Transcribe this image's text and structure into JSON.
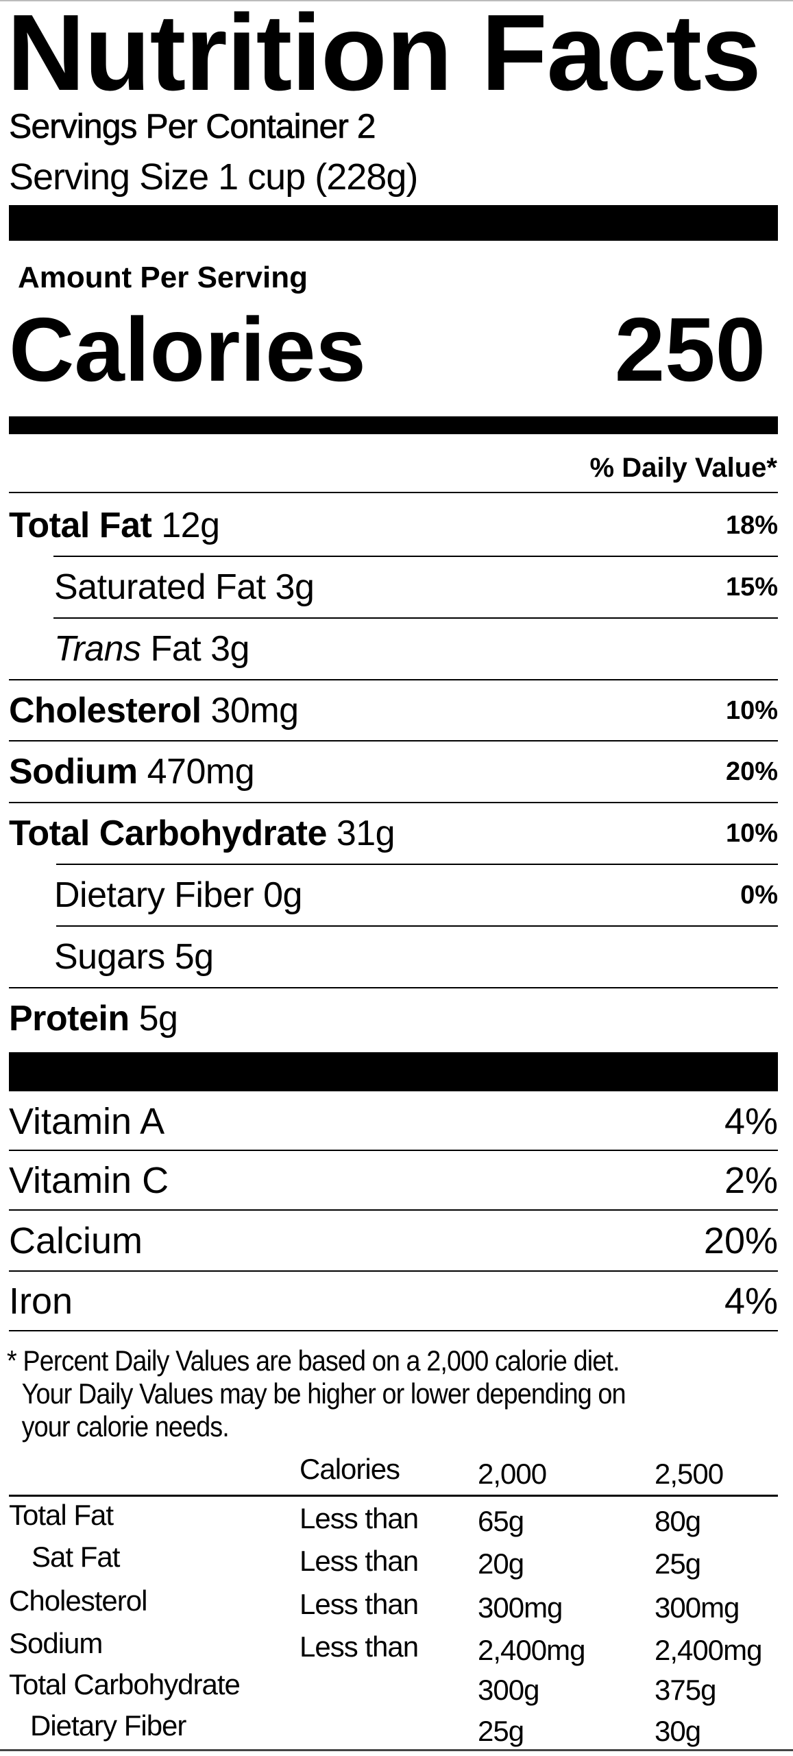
{
  "title": "Nutrition Facts",
  "servings_per_container": "Servings Per Container 2",
  "serving_size": "Serving Size 1 cup (228g)",
  "amount_per_serving": "Amount Per Serving",
  "calories_label": "Calories",
  "calories_value": "250",
  "daily_value_header": "% Daily Value*",
  "nutrients": [
    {
      "name": "Total Fat",
      "amount": "12g",
      "dv": "18%"
    },
    {
      "name": "Saturated Fat 3g",
      "dv": "15%"
    },
    {
      "name_italic": "Trans",
      "name": "Fat 3g"
    },
    {
      "name": "Cholesterol",
      "amount": "30mg",
      "dv": "10%"
    },
    {
      "name": "Sodium",
      "amount": "470mg",
      "dv": "20%"
    },
    {
      "name": "Total Carbohydrate",
      "amount": "31g",
      "dv": "10%"
    },
    {
      "name": "Dietary Fiber 0g",
      "dv": "0%"
    },
    {
      "name": "Sugars 5g"
    },
    {
      "name": "Protein",
      "amount": "5g"
    }
  ],
  "vitamins": [
    {
      "name": "Vitamin A",
      "dv": "4%"
    },
    {
      "name": "Vitamin C",
      "dv": "2%"
    },
    {
      "name": "Calcium",
      "dv": "20%"
    },
    {
      "name": "Iron",
      "dv": "4%"
    }
  ],
  "footnote": {
    "line1": "* Percent Daily Values are based on a 2,000 calorie diet.",
    "line2": "Your Daily Values may be higher or lower depending on",
    "line3": "your calorie needs."
  },
  "dv_table": {
    "header": [
      "Calories",
      "2,000",
      "2,500"
    ],
    "rows": [
      {
        "label": "Total Fat",
        "qual": "Less than",
        "v2000": "65g",
        "v2500": "80g"
      },
      {
        "label": "Sat Fat",
        "qual": "Less than",
        "v2000": "20g",
        "v2500": "25g"
      },
      {
        "label": "Cholesterol",
        "qual": "Less than",
        "v2000": "300mg",
        "v2500": "300mg"
      },
      {
        "label": "Sodium",
        "qual": "Less than",
        "v2000": "2,400mg",
        "v2500": "2,400mg"
      },
      {
        "label": "Total Carbohydrate",
        "qual": "",
        "v2000": "300g",
        "v2500": "375g"
      },
      {
        "label": "Dietary Fiber",
        "qual": "",
        "v2000": "25g",
        "v2500": "30g"
      }
    ]
  }
}
